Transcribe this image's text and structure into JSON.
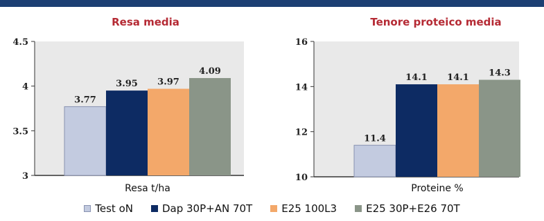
{
  "chart_data": [
    {
      "type": "bar",
      "title": "Resa media",
      "xlabel": "Resa t/ha",
      "ylabel": "",
      "ylim": [
        3,
        4.5
      ],
      "yticks": [
        "3",
        "3.5",
        "4",
        "4.5"
      ],
      "series": [
        {
          "name": "Test oN",
          "values": [
            3.77
          ],
          "label": "3.77"
        },
        {
          "name": "Dap 30P+AN 70T",
          "values": [
            3.95
          ],
          "label": "3.95"
        },
        {
          "name": "E25 100L3",
          "values": [
            3.97
          ],
          "label": "3.97"
        },
        {
          "name": "E25 30P+E26 70T",
          "values": [
            4.09
          ],
          "label": "4.09"
        }
      ],
      "grid": false
    },
    {
      "type": "bar",
      "title": "Tenore proteico media",
      "xlabel": "Proteine %",
      "ylabel": "",
      "ylim": [
        10,
        16
      ],
      "yticks": [
        "10",
        "12",
        "14",
        "16"
      ],
      "series": [
        {
          "name": "Test oN",
          "values": [
            11.4
          ],
          "label": "11.4"
        },
        {
          "name": "Dap 30P+AN 70T",
          "values": [
            14.1
          ],
          "label": "14.1"
        },
        {
          "name": "E25 100L3",
          "values": [
            14.1
          ],
          "label": "14.1"
        },
        {
          "name": "E25 30P+E26 70T",
          "values": [
            14.3
          ],
          "label": "14.3"
        }
      ],
      "grid": false
    }
  ],
  "legend": {
    "placement": "bottom",
    "items": [
      {
        "label": "Test oN",
        "color": "#c3cbe0"
      },
      {
        "label": "Dap 30P+AN 70T",
        "color": "#0d2b63"
      },
      {
        "label": "E25 100L3",
        "color": "#f3a86a"
      },
      {
        "label": "E25 30P+E26 70T",
        "color": "#8a9588"
      }
    ]
  },
  "colors": {
    "title": "#b52a34",
    "header_bar": "#1c3f73",
    "plot_background": "#e9e9e9"
  }
}
